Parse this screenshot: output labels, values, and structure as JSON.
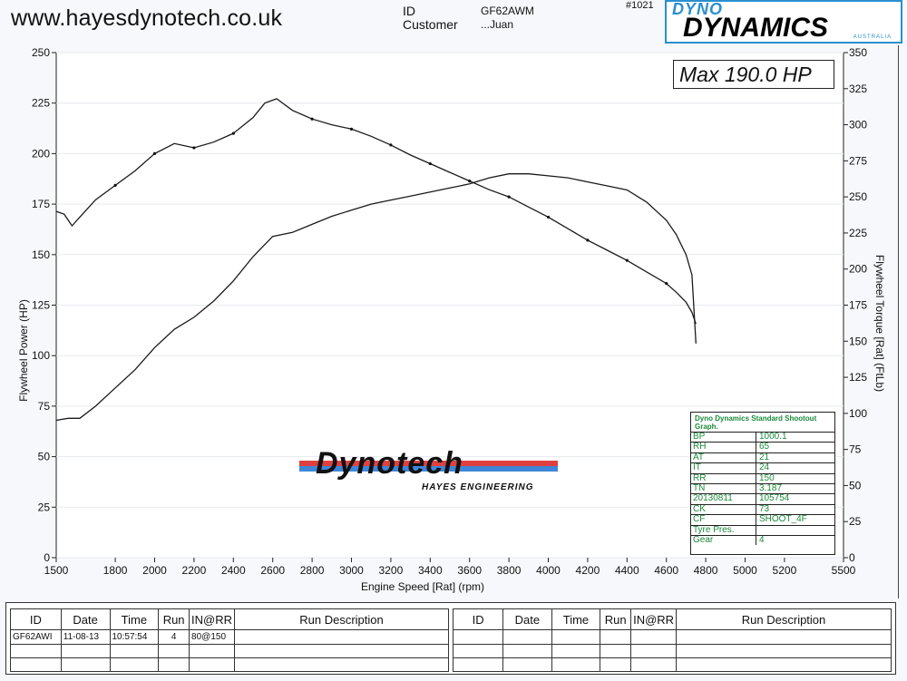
{
  "header": {
    "website": "www.hayesdynotech.co.uk",
    "id_label": "ID",
    "id_value": "GF62AWM",
    "customer_label": "Customer",
    "customer_value": "...Juan",
    "run_number": "#1021",
    "brand": {
      "top": "DYNO",
      "main": "DYNAMICS",
      "sub": "AUSTRALIA",
      "color": "#2a8fd0"
    }
  },
  "max_label": "Max 190.0 HP",
  "watermark": {
    "main": "Dynotech",
    "sub": "HAYES ENGINEERING"
  },
  "spec_table": {
    "title": "Dyno Dynamics Standard Shootout Graph.",
    "rows": [
      {
        "key": "BP",
        "value": "1000.1"
      },
      {
        "key": "RH",
        "value": "65"
      },
      {
        "key": "AT",
        "value": "21"
      },
      {
        "key": "IT",
        "value": "24"
      },
      {
        "key": "RR",
        "value": "150"
      },
      {
        "key": "TN",
        "value": "3.187"
      },
      {
        "key": "20130811",
        "value": "105754"
      },
      {
        "key": "CK",
        "value": "73"
      },
      {
        "key": "CF",
        "value": "SHOOT_4F"
      },
      {
        "key": "Tyre Pres.",
        "value": ""
      },
      {
        "key": "Gear",
        "value": "4"
      }
    ]
  },
  "run_table": {
    "headers": [
      "ID",
      "Date",
      "Time",
      "Run",
      "IN@RR",
      "Run Description"
    ],
    "left_rows": [
      [
        "GF62AWI",
        "11-08-13",
        "10:57:54",
        "4",
        "80@150",
        ""
      ]
    ]
  },
  "chart_data": {
    "type": "line",
    "xlabel": "Engine Speed [Rat] (rpm)",
    "ylabel": "Flywheel Power (HP)",
    "y2label": "Flywheel Torque [Rat] (FtLb)",
    "xlim": [
      1500,
      5500
    ],
    "ylim": [
      0,
      250
    ],
    "y2lim": [
      0,
      350
    ],
    "x_ticks": [
      1500,
      1800,
      2000,
      2200,
      2400,
      2600,
      2800,
      3000,
      3200,
      3400,
      3600,
      3800,
      4000,
      4200,
      4400,
      4600,
      4800,
      5000,
      5200,
      5500
    ],
    "y_ticks": [
      0,
      25,
      50,
      75,
      100,
      125,
      150,
      175,
      200,
      225,
      250
    ],
    "y2_ticks": [
      0,
      25,
      50,
      75,
      100,
      125,
      150,
      175,
      200,
      225,
      250,
      275,
      300,
      325,
      350
    ],
    "series": [
      {
        "axis": "left",
        "x": [
          1500,
          1560,
          1620,
          1700,
          1800,
          1900,
          2000,
          2100,
          2200,
          2300,
          2400,
          2500,
          2600,
          2700,
          2800,
          2900,
          3000,
          3100,
          3200,
          3300,
          3400,
          3500,
          3600,
          3700,
          3800,
          3900,
          4000,
          4100,
          4200,
          4300,
          4400,
          4500,
          4600,
          4650,
          4700,
          4730,
          4750
        ],
        "y": [
          68,
          69,
          69,
          75,
          84,
          93,
          104,
          113,
          119,
          127,
          137,
          149,
          159,
          161,
          165,
          169,
          172,
          175,
          177,
          179,
          181,
          183,
          185,
          188,
          190,
          190,
          189,
          188,
          186,
          184,
          182,
          176,
          167,
          160,
          150,
          140,
          106
        ]
      },
      {
        "axis": "right",
        "x": [
          1500,
          1540,
          1580,
          1620,
          1700,
          1800,
          1900,
          2000,
          2100,
          2200,
          2300,
          2400,
          2500,
          2560,
          2620,
          2700,
          2800,
          2900,
          3000,
          3100,
          3200,
          3300,
          3400,
          3500,
          3600,
          3700,
          3800,
          3900,
          4000,
          4100,
          4200,
          4300,
          4400,
          4500,
          4600,
          4650,
          4700,
          4730,
          4750
        ],
        "y": [
          240,
          238,
          230,
          236,
          248,
          258,
          268,
          280,
          287,
          284,
          288,
          294,
          305,
          315,
          318,
          310,
          304,
          300,
          297,
          292,
          286,
          279,
          273,
          267,
          261,
          255,
          250,
          243,
          236,
          228,
          220,
          213,
          206,
          198,
          190,
          184,
          177,
          170,
          162
        ]
      }
    ]
  }
}
